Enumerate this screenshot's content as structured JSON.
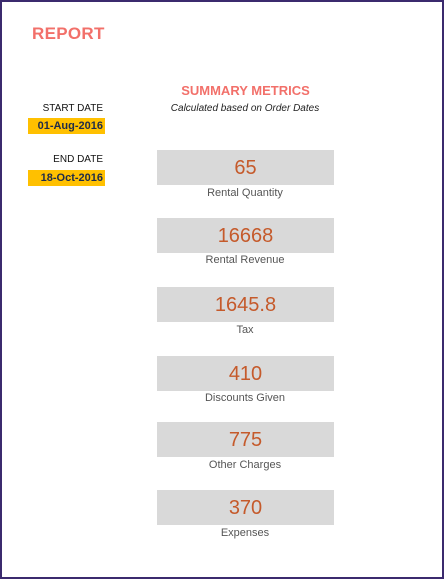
{
  "report": {
    "title": "REPORT"
  },
  "summary": {
    "title": "SUMMARY METRICS",
    "subtitle": "Calculated based on Order Dates"
  },
  "dates": {
    "start_label": "START DATE",
    "start_value": "01-Aug-2016",
    "end_label": "END DATE",
    "end_value": "18-Oct-2016"
  },
  "metrics": [
    {
      "value": "65",
      "label": "Rental Quantity"
    },
    {
      "value": "16668",
      "label": "Rental Revenue"
    },
    {
      "value": "1645.8",
      "label": "Tax"
    },
    {
      "value": "410",
      "label": "Discounts Given"
    },
    {
      "value": "775",
      "label": "Other Charges"
    },
    {
      "value": "370",
      "label": "Expenses"
    }
  ],
  "colors": {
    "accent": "#f2706a",
    "metric_value": "#c55a2b",
    "date_highlight": "#ffc000",
    "box_fill": "#d9d9d9",
    "frame": "#3b2a6e"
  }
}
